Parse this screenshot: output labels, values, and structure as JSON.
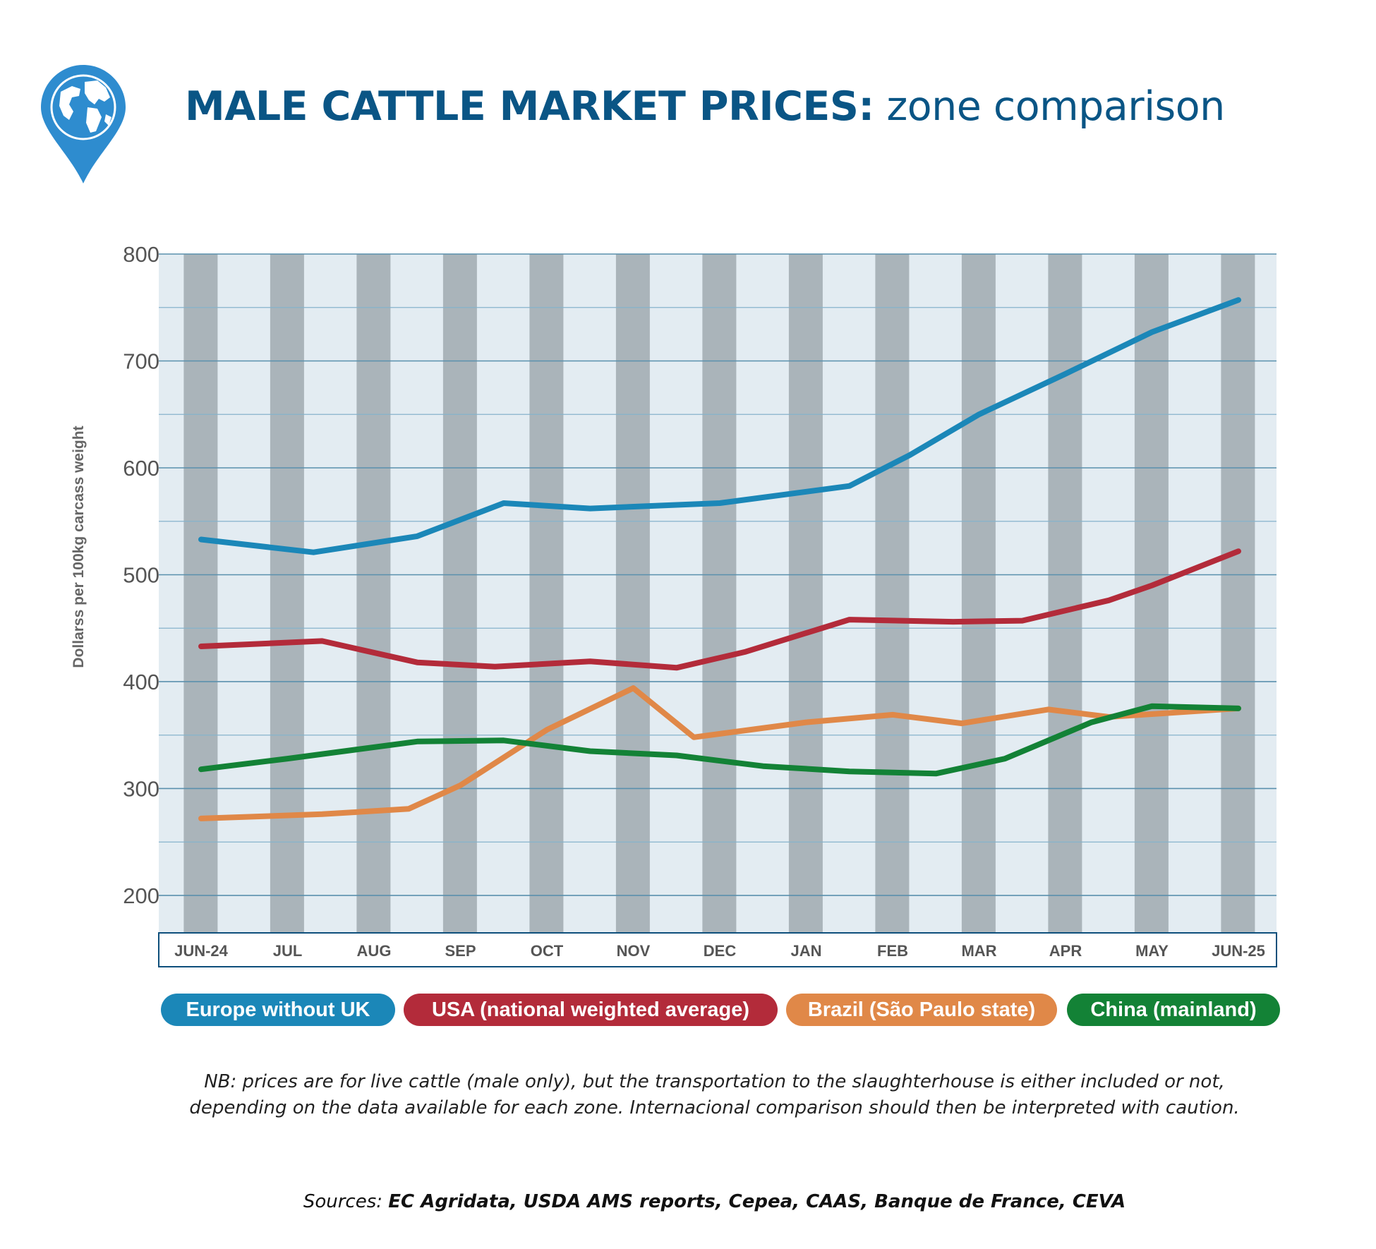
{
  "header": {
    "title_bold": "MALE CATTLE MARKET PRICES:",
    "title_rest": "zone comparison"
  },
  "chart_data": {
    "type": "line",
    "ylabel": "Dollarss per 100kg carcass weight",
    "xlabel": "",
    "ylim": [
      165,
      800
    ],
    "yticks": [
      200,
      300,
      400,
      500,
      600,
      700,
      800
    ],
    "x_index_range": [
      -0.2,
      12.85
    ],
    "categories": [
      "JUN-24",
      "JUL",
      "AUG",
      "SEP",
      "OCT",
      "NOV",
      "DEC",
      "JAN",
      "FEB",
      "MAR",
      "APR",
      "MAY",
      "JUN-25"
    ],
    "series": [
      {
        "name": "Europe without UK",
        "color": "#1b87b8",
        "points": [
          [
            0.0,
            533
          ],
          [
            1.3,
            521
          ],
          [
            2.5,
            536
          ],
          [
            3.5,
            567
          ],
          [
            4.5,
            562
          ],
          [
            6.0,
            567
          ],
          [
            7.5,
            583
          ],
          [
            8.2,
            612
          ],
          [
            9.0,
            650
          ],
          [
            10.0,
            688
          ],
          [
            11.0,
            727
          ],
          [
            12.0,
            757
          ]
        ]
      },
      {
        "name": "USA (national weighted average)",
        "color": "#b32b3a",
        "points": [
          [
            0.0,
            433
          ],
          [
            1.4,
            438
          ],
          [
            2.5,
            418
          ],
          [
            3.4,
            414
          ],
          [
            4.5,
            419
          ],
          [
            5.5,
            413
          ],
          [
            6.3,
            428
          ],
          [
            7.5,
            458
          ],
          [
            8.7,
            456
          ],
          [
            9.5,
            457
          ],
          [
            10.5,
            476
          ],
          [
            11.0,
            490
          ],
          [
            12.0,
            522
          ]
        ]
      },
      {
        "name": "Brazil (São Paulo state)",
        "color": "#e08848",
        "points": [
          [
            0.0,
            272
          ],
          [
            1.4,
            276
          ],
          [
            2.4,
            281
          ],
          [
            3.0,
            303
          ],
          [
            4.0,
            355
          ],
          [
            5.0,
            394
          ],
          [
            5.7,
            348
          ],
          [
            7.0,
            362
          ],
          [
            8.0,
            369
          ],
          [
            8.8,
            361
          ],
          [
            9.8,
            374
          ],
          [
            10.5,
            367
          ],
          [
            12.0,
            375
          ]
        ]
      },
      {
        "name": "China (mainland)",
        "color": "#138236",
        "points": [
          [
            0.0,
            318
          ],
          [
            1.0,
            328
          ],
          [
            2.5,
            344
          ],
          [
            3.5,
            345
          ],
          [
            4.5,
            335
          ],
          [
            5.5,
            331
          ],
          [
            6.5,
            321
          ],
          [
            7.5,
            316
          ],
          [
            8.5,
            314
          ],
          [
            9.3,
            328
          ],
          [
            10.3,
            362
          ],
          [
            11.0,
            377
          ],
          [
            12.0,
            375
          ]
        ]
      }
    ]
  },
  "note": {
    "line1": "NB: prices are for live cattle (male only), but the transportation to the slaughterhouse is either included or not,",
    "line2": "depending on the data available for each zone. Internacional comparison should then be interpreted with caution."
  },
  "sources": {
    "label": "Sources:",
    "list": "EC Agridata, USDA AMS reports, Cepea, CAAS, Banque de France, CEVA"
  }
}
